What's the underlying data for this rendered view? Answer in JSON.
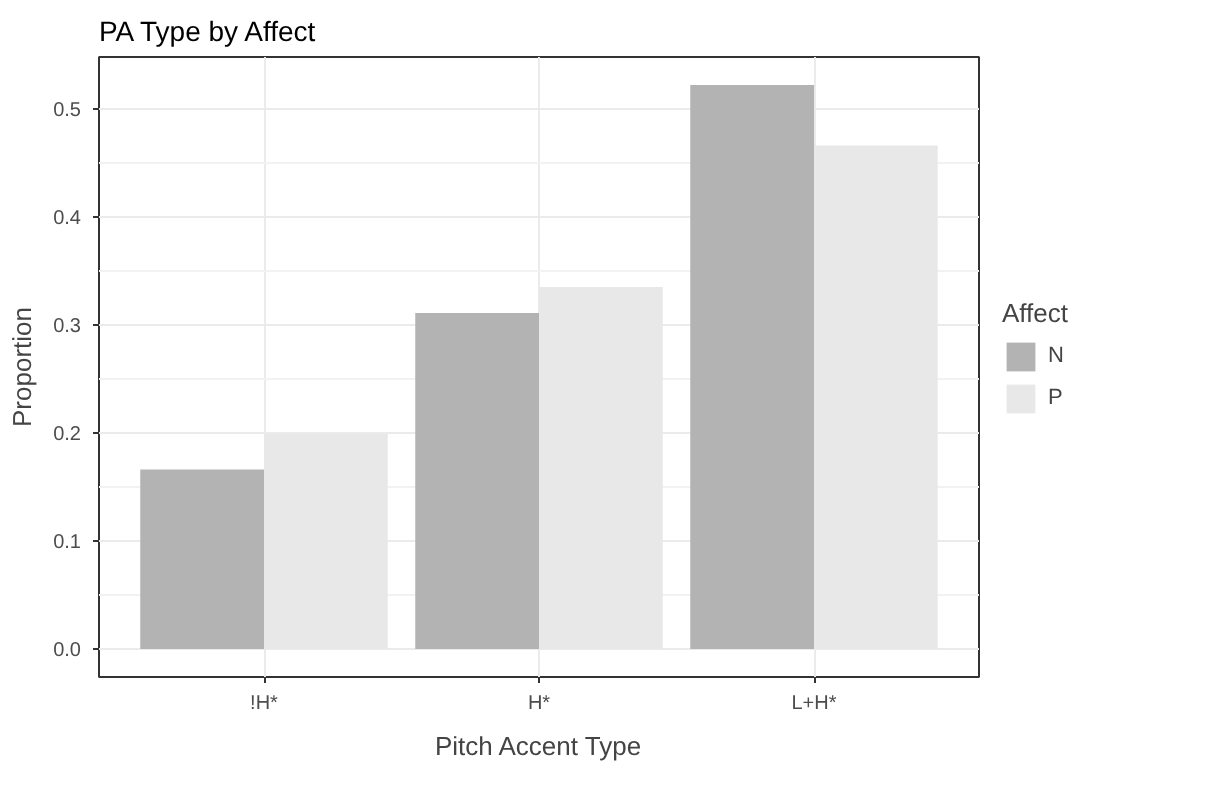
{
  "chart_data": {
    "type": "bar",
    "title": "PA Type by Affect",
    "xlabel": "Pitch Accent Type",
    "ylabel": "Proportion",
    "legend_title": "Affect",
    "categories": [
      "!H*",
      "H*",
      "L+H*"
    ],
    "series": [
      {
        "name": "N",
        "color": "#b3b3b3",
        "values": [
          0.166,
          0.311,
          0.522
        ]
      },
      {
        "name": "P",
        "color": "#e8e8e8",
        "values": [
          0.199,
          0.335,
          0.466
        ]
      }
    ],
    "ylim": [
      -0.026,
      0.548
    ],
    "yticks": [
      {
        "value": 0,
        "label": "0.0"
      },
      0.1,
      0.2,
      0.3,
      0.4,
      0.5
    ],
    "grid": true,
    "legend": "right"
  }
}
